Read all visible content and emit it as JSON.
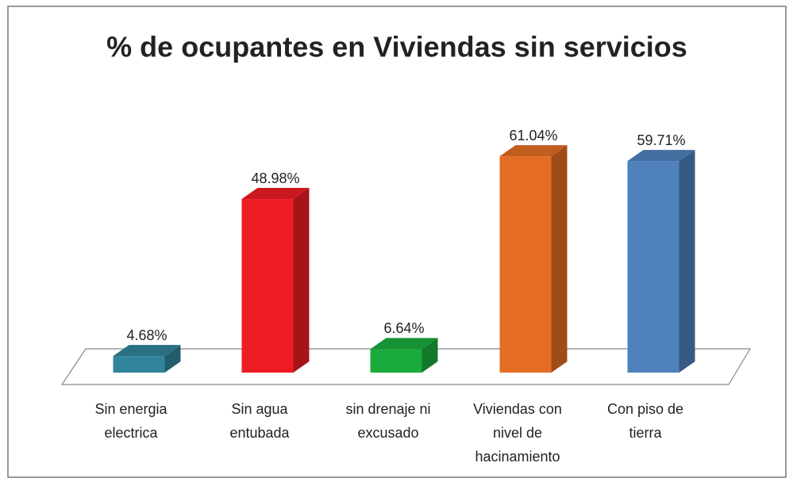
{
  "chart_data": {
    "type": "bar3d",
    "title": "% de ocupantes en Viviendas sin servicios",
    "categories": [
      [
        "Sin energia",
        "electrica"
      ],
      [
        "Sin agua",
        "entubada"
      ],
      [
        "sin drenaje ni",
        "excusado"
      ],
      [
        "Viviendas con",
        "nivel de",
        "hacinamiento"
      ],
      [
        "Con piso de",
        "tierra"
      ]
    ],
    "values": [
      4.68,
      48.98,
      6.64,
      61.04,
      59.71
    ],
    "value_labels": [
      "4.68%",
      "48.98%",
      "6.64%",
      "61.04%",
      "59.71%"
    ],
    "colors": [
      "#31849b",
      "#ed1c24",
      "#1aab3c",
      "#e46c24",
      "#4f81bd"
    ]
  }
}
